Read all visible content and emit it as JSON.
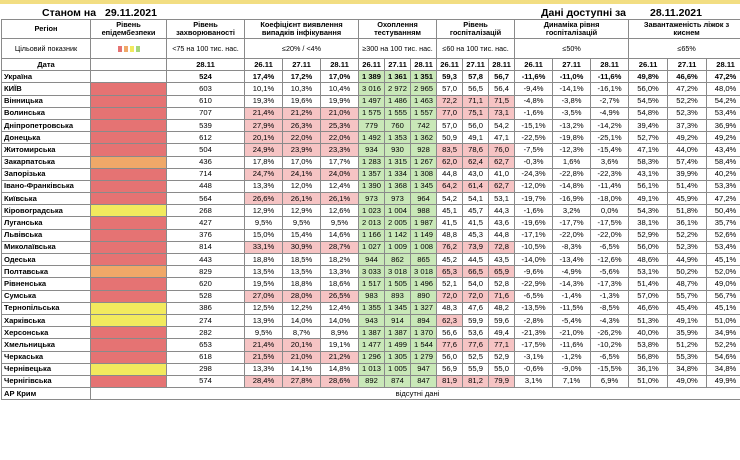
{
  "header": {
    "label": "Станом на",
    "date": "29.11.2021",
    "right_label": "Дані доступні за",
    "right_date": "28.11.2021"
  },
  "columns": {
    "region": "Регіон",
    "epi": "Рівень епідембезпеки",
    "inc": "Рівень захворюваності",
    "det": "Коефіцієнт виявлення випадків інфікування",
    "test": "Охоплення тестуванням",
    "hosp": "Рівень госпіталізацій",
    "dyn": "Динаміка рівня госпіталізацій",
    "beds": "Завантаженість ліжок з киснем"
  },
  "targets": {
    "label": "Цільовий показник",
    "inc": "<75 на 100 тис. нас.",
    "det": "≤20% / <4%",
    "test": "≥300 на 100 тис. нас.",
    "hosp": "≤60 на 100 тис. нас.",
    "dyn": "≤50%",
    "beds": "≤65%"
  },
  "legend_colors": [
    "#e57373",
    "#f0a868",
    "#f2ea5e",
    "#a5d67a"
  ],
  "dates": {
    "label": "Дата",
    "d1": "28.11",
    "d2": "26.11",
    "d3": "27.11",
    "d4": "28.11"
  },
  "rows": [
    {
      "name": "Україна",
      "epi": "",
      "inc": "524",
      "det": [
        "17,4%",
        "17,2%",
        "17,0%"
      ],
      "test": [
        "1 389",
        "1 361",
        "1 351"
      ],
      "hosp": [
        "59,3",
        "57,8",
        "56,7"
      ],
      "dyn": [
        "-11,6%",
        "-11,0%",
        "-11,6%"
      ],
      "beds": [
        "49,8%",
        "46,6%",
        "47,2%"
      ]
    },
    {
      "name": "КИЇВ",
      "epi": "red",
      "inc": "603",
      "det": [
        "10,1%",
        "10,3%",
        "10,4%"
      ],
      "test": [
        "3 016",
        "2 972",
        "2 965"
      ],
      "hosp": [
        "57,0",
        "56,5",
        "56,4"
      ],
      "dyn": [
        "-9,4%",
        "-14,1%",
        "-16,1%"
      ],
      "beds": [
        "56,0%",
        "47,2%",
        "48,0%"
      ]
    },
    {
      "name": "Вінницька",
      "epi": "red",
      "inc": "610",
      "det": [
        "19,3%",
        "19,6%",
        "19,9%"
      ],
      "test": [
        "1 497",
        "1 486",
        "1 463"
      ],
      "hosp": [
        "72,2",
        "71,1",
        "71,5"
      ],
      "dyn": [
        "-4,8%",
        "-3,8%",
        "-2,7%"
      ],
      "beds": [
        "54,5%",
        "52,2%",
        "54,2%"
      ]
    },
    {
      "name": "Волинська",
      "epi": "red",
      "inc": "707",
      "det": [
        "21,4%",
        "21,2%",
        "21,0%"
      ],
      "test": [
        "1 575",
        "1 555",
        "1 557"
      ],
      "hosp": [
        "77,0",
        "75,1",
        "73,1"
      ],
      "dyn": [
        "-1,6%",
        "-3,5%",
        "-4,9%"
      ],
      "beds": [
        "54,8%",
        "52,3%",
        "53,4%"
      ]
    },
    {
      "name": "Дніпропетровська",
      "epi": "red",
      "inc": "539",
      "det": [
        "27,9%",
        "26,3%",
        "25,3%"
      ],
      "test": [
        "779",
        "760",
        "742"
      ],
      "hosp": [
        "57,0",
        "56,0",
        "54,2"
      ],
      "dyn": [
        "-15,1%",
        "-13,2%",
        "-14,2%"
      ],
      "beds": [
        "39,4%",
        "37,3%",
        "36,9%"
      ]
    },
    {
      "name": "Донецька",
      "epi": "red",
      "inc": "612",
      "det": [
        "20,1%",
        "22,0%",
        "22,0%"
      ],
      "test": [
        "1 492",
        "1 353",
        "1 362"
      ],
      "hosp": [
        "50,9",
        "49,1",
        "47,1"
      ],
      "dyn": [
        "-22,5%",
        "-19,8%",
        "-25,1%"
      ],
      "beds": [
        "52,7%",
        "49,2%",
        "49,2%"
      ]
    },
    {
      "name": "Житомирська",
      "epi": "red",
      "inc": "504",
      "det": [
        "24,9%",
        "23,9%",
        "23,3%"
      ],
      "test": [
        "934",
        "930",
        "928"
      ],
      "hosp": [
        "83,5",
        "78,6",
        "76,0"
      ],
      "dyn": [
        "-7,5%",
        "-12,3%",
        "-15,4%"
      ],
      "beds": [
        "47,1%",
        "44,0%",
        "43,4%"
      ]
    },
    {
      "name": "Закарпатська",
      "epi": "org",
      "inc": "436",
      "det": [
        "17,8%",
        "17,0%",
        "17,7%"
      ],
      "test": [
        "1 283",
        "1 315",
        "1 267"
      ],
      "hosp": [
        "62,0",
        "62,4",
        "62,7"
      ],
      "dyn": [
        "-0,3%",
        "1,6%",
        "3,6%"
      ],
      "beds": [
        "58,3%",
        "57,4%",
        "58,4%"
      ]
    },
    {
      "name": "Запорізька",
      "epi": "red",
      "inc": "714",
      "det": [
        "24,7%",
        "24,1%",
        "24,0%"
      ],
      "test": [
        "1 357",
        "1 334",
        "1 308"
      ],
      "hosp": [
        "44,8",
        "43,0",
        "41,0"
      ],
      "dyn": [
        "-24,3%",
        "-22,8%",
        "-22,3%"
      ],
      "beds": [
        "43,1%",
        "39,9%",
        "40,2%"
      ]
    },
    {
      "name": "Івано-Франківська",
      "epi": "red",
      "inc": "448",
      "det": [
        "13,3%",
        "12,0%",
        "12,4%"
      ],
      "test": [
        "1 390",
        "1 368",
        "1 345"
      ],
      "hosp": [
        "64,2",
        "61,4",
        "62,7"
      ],
      "dyn": [
        "-12,0%",
        "-14,8%",
        "-11,4%"
      ],
      "beds": [
        "56,1%",
        "51,4%",
        "53,3%"
      ]
    },
    {
      "name": "Київська",
      "epi": "red",
      "inc": "564",
      "det": [
        "26,6%",
        "26,1%",
        "26,1%"
      ],
      "test": [
        "973",
        "973",
        "964"
      ],
      "hosp": [
        "54,2",
        "54,1",
        "53,1"
      ],
      "dyn": [
        "-19,7%",
        "-16,9%",
        "-18,0%"
      ],
      "beds": [
        "49,1%",
        "45,9%",
        "47,2%"
      ]
    },
    {
      "name": "Кіровоградська",
      "epi": "yel",
      "inc": "268",
      "det": [
        "12,9%",
        "12,9%",
        "12,6%"
      ],
      "test": [
        "1 023",
        "1 004",
        "988"
      ],
      "hosp": [
        "45,1",
        "45,7",
        "44,3"
      ],
      "dyn": [
        "-1,6%",
        "3,2%",
        "0,0%"
      ],
      "beds": [
        "54,3%",
        "51,8%",
        "50,4%"
      ]
    },
    {
      "name": "Луганська",
      "epi": "red",
      "inc": "427",
      "det": [
        "9,5%",
        "9,5%",
        "9,5%"
      ],
      "test": [
        "2 013",
        "2 005",
        "1 987"
      ],
      "hosp": [
        "41,5",
        "41,5",
        "43,6"
      ],
      "dyn": [
        "-19,6%",
        "-17,7%",
        "-17,5%"
      ],
      "beds": [
        "38,1%",
        "36,1%",
        "35,7%"
      ]
    },
    {
      "name": "Львівська",
      "epi": "red",
      "inc": "376",
      "det": [
        "15,0%",
        "15,4%",
        "14,6%"
      ],
      "test": [
        "1 166",
        "1 142",
        "1 149"
      ],
      "hosp": [
        "48,8",
        "45,3",
        "44,8"
      ],
      "dyn": [
        "-17,1%",
        "-22,0%",
        "-22,0%"
      ],
      "beds": [
        "52,9%",
        "52,2%",
        "52,6%"
      ]
    },
    {
      "name": "Миколаївська",
      "epi": "red",
      "inc": "814",
      "det": [
        "33,1%",
        "30,9%",
        "28,7%"
      ],
      "test": [
        "1 027",
        "1 009",
        "1 008"
      ],
      "hosp": [
        "76,2",
        "73,9",
        "72,8"
      ],
      "dyn": [
        "-10,5%",
        "-8,3%",
        "-6,5%"
      ],
      "beds": [
        "56,0%",
        "52,3%",
        "53,4%"
      ]
    },
    {
      "name": "Одеська",
      "epi": "red",
      "inc": "443",
      "det": [
        "18,8%",
        "18,5%",
        "18,2%"
      ],
      "test": [
        "944",
        "862",
        "865"
      ],
      "hosp": [
        "45,2",
        "44,5",
        "43,5"
      ],
      "dyn": [
        "-14,0%",
        "-13,4%",
        "-12,6%"
      ],
      "beds": [
        "48,6%",
        "44,9%",
        "45,1%"
      ]
    },
    {
      "name": "Полтавська",
      "epi": "org",
      "inc": "829",
      "det": [
        "13,5%",
        "13,5%",
        "13,3%"
      ],
      "test": [
        "3 033",
        "3 018",
        "3 018"
      ],
      "hosp": [
        "65,3",
        "66,5",
        "65,9"
      ],
      "dyn": [
        "-9,6%",
        "-4,9%",
        "-5,6%"
      ],
      "beds": [
        "53,1%",
        "50,2%",
        "52,0%"
      ]
    },
    {
      "name": "Рівненська",
      "epi": "red",
      "inc": "620",
      "det": [
        "19,5%",
        "18,8%",
        "18,6%"
      ],
      "test": [
        "1 517",
        "1 505",
        "1 496"
      ],
      "hosp": [
        "52,1",
        "54,0",
        "52,8"
      ],
      "dyn": [
        "-22,9%",
        "-14,3%",
        "-17,3%"
      ],
      "beds": [
        "51,4%",
        "48,7%",
        "49,0%"
      ]
    },
    {
      "name": "Сумська",
      "epi": "red",
      "inc": "528",
      "det": [
        "27,0%",
        "28,0%",
        "26,5%"
      ],
      "test": [
        "983",
        "893",
        "890"
      ],
      "hosp": [
        "72,0",
        "72,0",
        "71,6"
      ],
      "dyn": [
        "-6,5%",
        "-1,4%",
        "-1,3%"
      ],
      "beds": [
        "57,0%",
        "55,7%",
        "56,7%"
      ]
    },
    {
      "name": "Тернопільська",
      "epi": "yel",
      "inc": "386",
      "det": [
        "12,5%",
        "12,2%",
        "12,4%"
      ],
      "test": [
        "1 355",
        "1 345",
        "1 327"
      ],
      "hosp": [
        "48,3",
        "47,6",
        "48,2"
      ],
      "dyn": [
        "-13,5%",
        "-11,5%",
        "-8,5%"
      ],
      "beds": [
        "46,6%",
        "45,4%",
        "45,1%"
      ]
    },
    {
      "name": "Харківська",
      "epi": "yel",
      "inc": "274",
      "det": [
        "13,9%",
        "14,0%",
        "14,0%"
      ],
      "test": [
        "943",
        "914",
        "894"
      ],
      "hosp": [
        "62,3",
        "59,9",
        "59,6"
      ],
      "dyn": [
        "-2,8%",
        "-5,4%",
        "-4,3%"
      ],
      "beds": [
        "51,3%",
        "49,1%",
        "51,0%"
      ]
    },
    {
      "name": "Херсонська",
      "epi": "red",
      "inc": "282",
      "det": [
        "9,5%",
        "8,7%",
        "8,9%"
      ],
      "test": [
        "1 387",
        "1 387",
        "1 370"
      ],
      "hosp": [
        "56,6",
        "53,6",
        "49,4"
      ],
      "dyn": [
        "-21,3%",
        "-21,0%",
        "-26,2%"
      ],
      "beds": [
        "40,0%",
        "35,9%",
        "34,9%"
      ]
    },
    {
      "name": "Хмельницька",
      "epi": "red",
      "inc": "653",
      "det": [
        "21,4%",
        "20,1%",
        "19,1%"
      ],
      "test": [
        "1 477",
        "1 499",
        "1 544"
      ],
      "hosp": [
        "77,6",
        "77,6",
        "77,1"
      ],
      "dyn": [
        "-17,5%",
        "-11,6%",
        "-10,2%"
      ],
      "beds": [
        "53,8%",
        "51,2%",
        "52,2%"
      ]
    },
    {
      "name": "Черкаська",
      "epi": "red",
      "inc": "618",
      "det": [
        "21,5%",
        "21,0%",
        "21,2%"
      ],
      "test": [
        "1 296",
        "1 305",
        "1 279"
      ],
      "hosp": [
        "56,0",
        "52,5",
        "52,9"
      ],
      "dyn": [
        "-3,1%",
        "-1,2%",
        "-6,5%"
      ],
      "beds": [
        "56,8%",
        "55,3%",
        "54,6%"
      ]
    },
    {
      "name": "Чернівецька",
      "epi": "yel",
      "inc": "298",
      "det": [
        "13,3%",
        "14,1%",
        "14,8%"
      ],
      "test": [
        "1 013",
        "1 005",
        "947"
      ],
      "hosp": [
        "56,9",
        "55,9",
        "55,0"
      ],
      "dyn": [
        "-0,6%",
        "-9,0%",
        "-15,5%"
      ],
      "beds": [
        "36,1%",
        "34,8%",
        "34,8%"
      ]
    },
    {
      "name": "Чернігівська",
      "epi": "red",
      "inc": "574",
      "det": [
        "28,4%",
        "27,8%",
        "28,6%"
      ],
      "test": [
        "892",
        "874",
        "847"
      ],
      "hosp": [
        "81,9",
        "81,2",
        "79,9"
      ],
      "dyn": [
        "3,1%",
        "7,1%",
        "6,9%"
      ],
      "beds": [
        "51,0%",
        "49,0%",
        "49,9%"
      ]
    }
  ],
  "crimea": {
    "name": "АР Крим",
    "note": "відсутні дані"
  }
}
